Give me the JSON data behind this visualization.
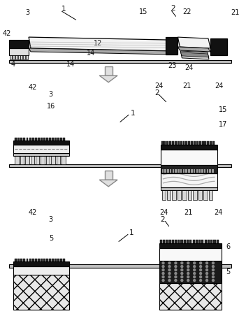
{
  "bg_color": "#ffffff",
  "lc": "#000000",
  "dk": "#111111",
  "med_gray": "#666666",
  "lt_gray": "#cccccc",
  "white": "#ffffff",
  "arrow_fc": "#e0e0e0",
  "arrow_ec": "#888888"
}
